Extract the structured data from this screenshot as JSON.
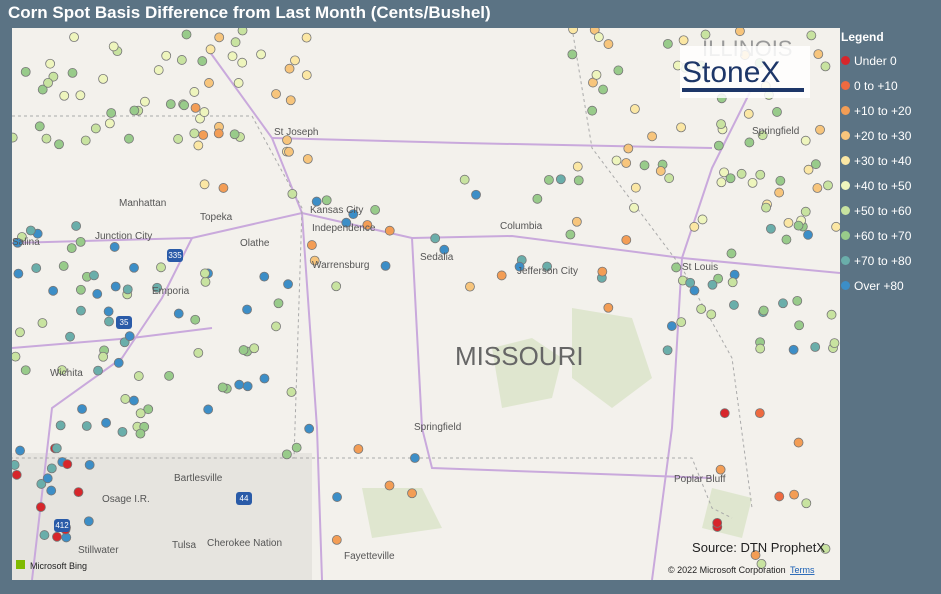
{
  "header": {
    "title": "Corn Spot Basis Difference from Last Month (Cents/Bushel)"
  },
  "legend": {
    "title": "Legend",
    "items": [
      {
        "label": "Under 0",
        "color": "#d7262b"
      },
      {
        "label": "0 to +10",
        "color": "#ee6a40"
      },
      {
        "label": "+10 to +20",
        "color": "#f39d55"
      },
      {
        "label": "+20 to +30",
        "color": "#f7c57c"
      },
      {
        "label": "+30 to +40",
        "color": "#fbe7a4"
      },
      {
        "label": "+40 to +50",
        "color": "#eef5bd"
      },
      {
        "label": "+50 to +60",
        "color": "#c8e3a0"
      },
      {
        "label": "+60 to +70",
        "color": "#98cb8a"
      },
      {
        "label": "+70 to +80",
        "color": "#6aaeaa"
      },
      {
        "label": "Over +80",
        "color": "#3c8ec7"
      }
    ]
  },
  "map": {
    "labels": [
      "St Joseph",
      "Manhattan",
      "Topeka",
      "Kansas City",
      "Independence",
      "Junction City",
      "Salina",
      "Olathe",
      "Columbia",
      "Sedalia",
      "Warrensburg",
      "Jefferson City",
      "Emporia",
      "Wichita",
      "Springfield",
      "St Louis",
      "MISSOURI",
      "Springfield",
      "Bartlesville",
      "Osage I.R.",
      "Poplar Bluff",
      "Tulsa",
      "Cherokee Nation",
      "Stillwater",
      "Fayetteville",
      "ILLINOIS"
    ],
    "shields": [
      "335",
      "35",
      "44",
      "412"
    ],
    "logo": "StoneX",
    "source": "Source: DTN ProphetX",
    "copyright": "© 2022 Microsoft Corporation",
    "terms": "Terms",
    "provider": "Microsoft Bing"
  }
}
